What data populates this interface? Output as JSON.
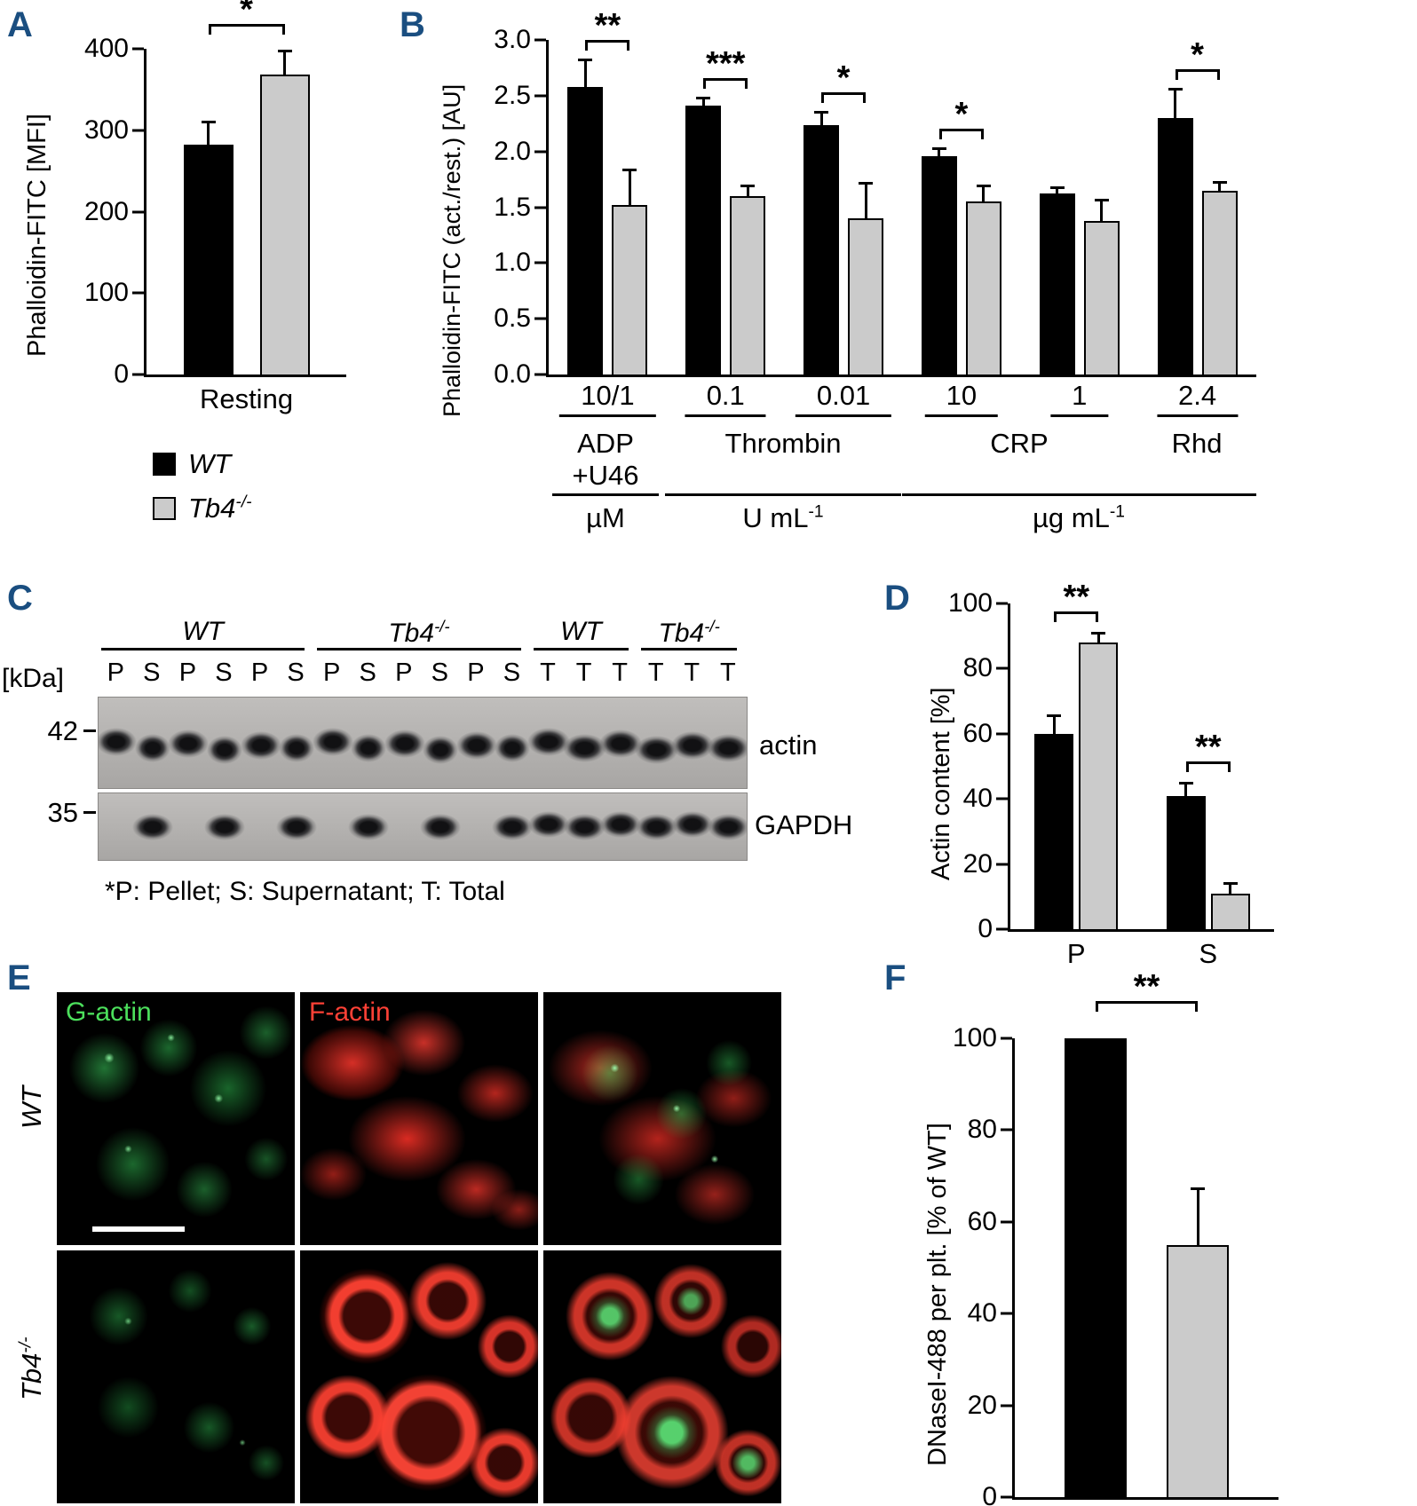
{
  "figure": {
    "panels": {
      "a": "A",
      "b": "B",
      "c": "C",
      "d": "D",
      "e": "E",
      "f": "F"
    }
  },
  "legend": {
    "wt": "WT",
    "ko_base": "Tb4",
    "ko_sup": "-/-"
  },
  "chart_data": [
    {
      "id": "A",
      "type": "bar",
      "ylabel": "Phalloidin-FITC [MFI]",
      "ylim": [
        0,
        400
      ],
      "yticks": [
        "0",
        "100",
        "200",
        "300",
        "400"
      ],
      "series": [
        {
          "name": "WT",
          "color": "#000000"
        },
        {
          "name": "Tb4-/-",
          "color": "#cbcbcb"
        }
      ],
      "groups": [
        {
          "label": "Resting",
          "sig": "*",
          "bars": [
            {
              "value": 282,
              "error": 26
            },
            {
              "value": 368,
              "error": 28
            }
          ]
        }
      ]
    },
    {
      "id": "B",
      "type": "bar",
      "ylabel": "Phalloidin-FITC (act./rest.) [AU]",
      "ylim": [
        0,
        3
      ],
      "yticks": [
        "0.0",
        "0.5",
        "1.0",
        "1.5",
        "2.0",
        "2.5",
        "3.0"
      ],
      "series": [
        {
          "name": "WT",
          "color": "#000000"
        },
        {
          "name": "Tb4-/-",
          "color": "#cbcbcb"
        }
      ],
      "groups": [
        {
          "label": "10/1",
          "sig": "**",
          "bars": [
            {
              "value": 2.58,
              "error": 0.23
            },
            {
              "value": 1.52,
              "error": 0.3
            }
          ]
        },
        {
          "label": "0.1",
          "sig": "***",
          "bars": [
            {
              "value": 2.41,
              "error": 0.06
            },
            {
              "value": 1.6,
              "error": 0.08
            }
          ]
        },
        {
          "label": "0.01",
          "sig": "*",
          "bars": [
            {
              "value": 2.24,
              "error": 0.1
            },
            {
              "value": 1.4,
              "error": 0.3
            }
          ]
        },
        {
          "label": "10",
          "sig": "*",
          "bars": [
            {
              "value": 1.96,
              "error": 0.05
            },
            {
              "value": 1.55,
              "error": 0.13
            }
          ]
        },
        {
          "label": "1",
          "sig": null,
          "bars": [
            {
              "value": 1.62,
              "error": 0.04
            },
            {
              "value": 1.38,
              "error": 0.17
            }
          ]
        },
        {
          "label": "2.4",
          "sig": "*",
          "bars": [
            {
              "value": 2.3,
              "error": 0.25
            },
            {
              "value": 1.65,
              "error": 0.06
            }
          ]
        }
      ],
      "annotations": {
        "adp_line1": "ADP",
        "adp_line2": "+U46",
        "thrombin": "Thrombin",
        "crp": "CRP",
        "rhd": "Rhd",
        "unit_um": "µM",
        "unit_uml_base": "U mL",
        "unit_uml_sup": "-1",
        "unit_ugml_base": "µg mL",
        "unit_ugml_sup": "-1"
      }
    },
    {
      "id": "D",
      "type": "bar",
      "ylabel": "Actin content [%]",
      "ylim": [
        0,
        100
      ],
      "yticks": [
        "0",
        "20",
        "40",
        "60",
        "80",
        "100"
      ],
      "series": [
        {
          "name": "WT",
          "color": "#000000"
        },
        {
          "name": "Tb4-/-",
          "color": "#cbcbcb"
        }
      ],
      "groups": [
        {
          "label": "P",
          "sig": "**",
          "bars": [
            {
              "value": 60,
              "error": 5
            },
            {
              "value": 88,
              "error": 2.5
            }
          ]
        },
        {
          "label": "S",
          "sig": "**",
          "bars": [
            {
              "value": 41,
              "error": 3.5
            },
            {
              "value": 11,
              "error": 2.5
            }
          ]
        }
      ]
    },
    {
      "id": "F",
      "type": "bar",
      "ylabel": "DNaseI-488 per plt. [% of WT]",
      "ylim": [
        0,
        100
      ],
      "yticks": [
        "0",
        "20",
        "40",
        "60",
        "80",
        "100"
      ],
      "series": [
        {
          "name": "WT",
          "color": "#000000"
        },
        {
          "name": "Tb4-/-",
          "color": "#cbcbcb"
        }
      ],
      "groups": [
        {
          "label": "",
          "sig": "**",
          "bars": [
            {
              "value": 100
            },
            {
              "value": 55,
              "error": 12
            }
          ]
        }
      ]
    }
  ],
  "panelC": {
    "kda_label": "[kDa]",
    "markers": [
      "42",
      "35"
    ],
    "groups": [
      {
        "base": "WT",
        "sup": "",
        "span": [
          0,
          5
        ]
      },
      {
        "base": "Tb4",
        "sup": "-/-",
        "span": [
          6,
          11
        ]
      },
      {
        "base": "WT",
        "sup": "",
        "span": [
          12,
          14
        ]
      },
      {
        "base": "Tb4",
        "sup": "-/-",
        "span": [
          15,
          17
        ]
      }
    ],
    "lanes": [
      "P",
      "S",
      "P",
      "S",
      "P",
      "S",
      "P",
      "S",
      "P",
      "S",
      "P",
      "S",
      "T",
      "T",
      "T",
      "T",
      "T",
      "T"
    ],
    "blot_labels": [
      "actin",
      "GAPDH"
    ],
    "footnote": "*P: Pellet; S: Supernatant; T: Total"
  },
  "panelE": {
    "col_labels": [
      {
        "text": "G-actin",
        "color": "#4ce05c"
      },
      {
        "text": "F-actin",
        "color": "#ff4136"
      }
    ],
    "row_labels": [
      {
        "base": "WT",
        "sup": ""
      },
      {
        "base": "Tb4",
        "sup": "-/-"
      }
    ]
  }
}
